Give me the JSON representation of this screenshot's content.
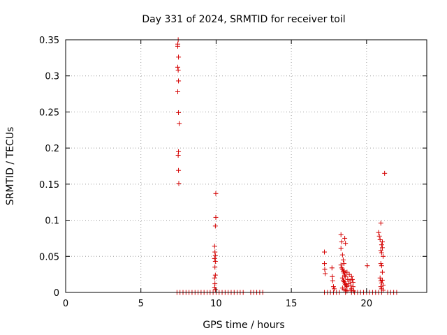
{
  "chart_data": {
    "type": "scatter",
    "title": "Day 331 of 2024, SRMTID for receiver toil",
    "xlabel": "GPS time / hours",
    "ylabel": "SRMTID / TECUs",
    "xlim": [
      0,
      24
    ],
    "ylim": [
      0,
      0.35
    ],
    "xticks": [
      0,
      5,
      10,
      15,
      20
    ],
    "xtick_labels": [
      "0",
      "5",
      "10",
      "15",
      "20"
    ],
    "yticks": [
      0,
      0.05,
      0.1,
      0.15,
      0.2,
      0.25,
      0.3,
      0.35
    ],
    "ytick_labels": [
      "0",
      "0.05",
      "0.1",
      "0.15",
      "0.2",
      "0.25",
      "0.3",
      "0.35"
    ],
    "grid": true,
    "marker": "+",
    "color": "#d40000",
    "series": [
      {
        "points": [
          [
            7.45,
            0.344
          ],
          [
            7.45,
            0.341
          ],
          [
            7.48,
            0.35
          ],
          [
            7.5,
            0.326
          ],
          [
            7.45,
            0.312
          ],
          [
            7.48,
            0.308
          ],
          [
            7.5,
            0.293
          ],
          [
            7.45,
            0.278
          ],
          [
            7.5,
            0.249
          ],
          [
            7.55,
            0.234
          ],
          [
            7.5,
            0.195
          ],
          [
            7.48,
            0.19
          ],
          [
            7.5,
            0.169
          ],
          [
            7.52,
            0.151
          ],
          [
            7.4,
            0.0
          ],
          [
            7.6,
            0.0
          ],
          [
            7.8,
            0.0
          ],
          [
            8.0,
            0.0
          ],
          [
            8.2,
            0.0
          ],
          [
            8.4,
            0.0
          ],
          [
            8.6,
            0.0
          ],
          [
            8.8,
            0.0
          ],
          [
            9.0,
            0.0
          ],
          [
            9.2,
            0.0
          ],
          [
            9.4,
            0.0
          ],
          [
            9.6,
            0.0
          ],
          [
            9.8,
            0.0
          ],
          [
            10.0,
            0.0
          ],
          [
            10.2,
            0.0
          ],
          [
            10.4,
            0.0
          ],
          [
            10.6,
            0.0
          ],
          [
            10.8,
            0.0
          ],
          [
            11.0,
            0.0
          ],
          [
            11.2,
            0.0
          ],
          [
            11.4,
            0.0
          ],
          [
            11.6,
            0.0
          ],
          [
            11.8,
            0.0
          ],
          [
            12.3,
            0.0
          ],
          [
            12.5,
            0.0
          ],
          [
            12.7,
            0.0
          ],
          [
            12.9,
            0.0
          ],
          [
            13.1,
            0.0
          ],
          [
            9.98,
            0.137
          ],
          [
            9.98,
            0.104
          ],
          [
            9.95,
            0.092
          ],
          [
            9.9,
            0.064
          ],
          [
            9.92,
            0.056
          ],
          [
            9.95,
            0.051
          ],
          [
            9.9,
            0.047
          ],
          [
            9.95,
            0.043
          ],
          [
            9.92,
            0.035
          ],
          [
            9.95,
            0.024
          ],
          [
            9.9,
            0.02
          ],
          [
            9.92,
            0.012
          ],
          [
            9.9,
            0.007
          ],
          [
            9.95,
            0.004
          ],
          [
            17.2,
            0.0
          ],
          [
            17.4,
            0.0
          ],
          [
            17.6,
            0.0
          ],
          [
            17.8,
            0.0
          ],
          [
            18.0,
            0.0
          ],
          [
            18.2,
            0.0
          ],
          [
            18.6,
            0.0
          ],
          [
            19.0,
            0.0
          ],
          [
            19.2,
            0.0
          ],
          [
            19.4,
            0.0
          ],
          [
            19.6,
            0.0
          ],
          [
            19.8,
            0.0
          ],
          [
            20.0,
            0.0
          ],
          [
            20.2,
            0.0
          ],
          [
            20.4,
            0.0
          ],
          [
            20.6,
            0.0
          ],
          [
            20.8,
            0.0
          ],
          [
            21.0,
            0.0
          ],
          [
            21.4,
            0.0
          ],
          [
            21.6,
            0.0
          ],
          [
            21.8,
            0.0
          ],
          [
            22.0,
            0.0
          ],
          [
            17.2,
            0.056
          ],
          [
            17.2,
            0.04
          ],
          [
            17.22,
            0.032
          ],
          [
            17.25,
            0.026
          ],
          [
            17.7,
            0.034
          ],
          [
            17.72,
            0.022
          ],
          [
            17.75,
            0.016
          ],
          [
            17.8,
            0.008
          ],
          [
            17.85,
            0.005
          ],
          [
            18.3,
            0.08
          ],
          [
            18.35,
            0.07
          ],
          [
            18.3,
            0.061
          ],
          [
            18.4,
            0.052
          ],
          [
            18.45,
            0.045
          ],
          [
            18.5,
            0.04
          ],
          [
            18.3,
            0.038
          ],
          [
            18.35,
            0.034
          ],
          [
            18.4,
            0.032
          ],
          [
            18.45,
            0.029
          ],
          [
            18.5,
            0.027
          ],
          [
            18.55,
            0.024
          ],
          [
            18.6,
            0.022
          ],
          [
            18.4,
            0.02
          ],
          [
            18.45,
            0.017
          ],
          [
            18.5,
            0.015
          ],
          [
            18.55,
            0.013
          ],
          [
            18.6,
            0.011
          ],
          [
            18.65,
            0.009
          ],
          [
            18.7,
            0.008
          ],
          [
            18.4,
            0.006
          ],
          [
            18.5,
            0.004
          ],
          [
            18.6,
            0.003
          ],
          [
            18.7,
            0.002
          ],
          [
            18.55,
            0.075
          ],
          [
            18.6,
            0.068
          ],
          [
            18.5,
            0.03
          ],
          [
            18.7,
            0.028
          ],
          [
            18.75,
            0.018
          ],
          [
            18.8,
            0.012
          ],
          [
            18.85,
            0.025
          ],
          [
            18.9,
            0.016
          ],
          [
            18.95,
            0.01
          ],
          [
            19.0,
            0.022
          ],
          [
            19.05,
            0.018
          ],
          [
            19.1,
            0.014
          ],
          [
            19.1,
            0.008
          ],
          [
            19.0,
            0.005
          ],
          [
            18.95,
            0.003
          ],
          [
            19.15,
            0.002
          ],
          [
            20.05,
            0.037
          ],
          [
            20.8,
            0.083
          ],
          [
            20.85,
            0.078
          ],
          [
            20.95,
            0.096
          ],
          [
            20.9,
            0.073
          ],
          [
            21.0,
            0.066
          ],
          [
            21.05,
            0.07
          ],
          [
            20.95,
            0.058
          ],
          [
            21.0,
            0.055
          ],
          [
            21.05,
            0.062
          ],
          [
            21.1,
            0.05
          ],
          [
            20.95,
            0.04
          ],
          [
            21.0,
            0.037
          ],
          [
            21.05,
            0.028
          ],
          [
            20.9,
            0.02
          ],
          [
            20.95,
            0.016
          ],
          [
            21.0,
            0.013
          ],
          [
            21.05,
            0.017
          ],
          [
            21.1,
            0.01
          ],
          [
            20.95,
            0.008
          ],
          [
            21.0,
            0.005
          ],
          [
            21.1,
            0.003
          ],
          [
            21.2,
            0.165
          ]
        ]
      }
    ]
  }
}
